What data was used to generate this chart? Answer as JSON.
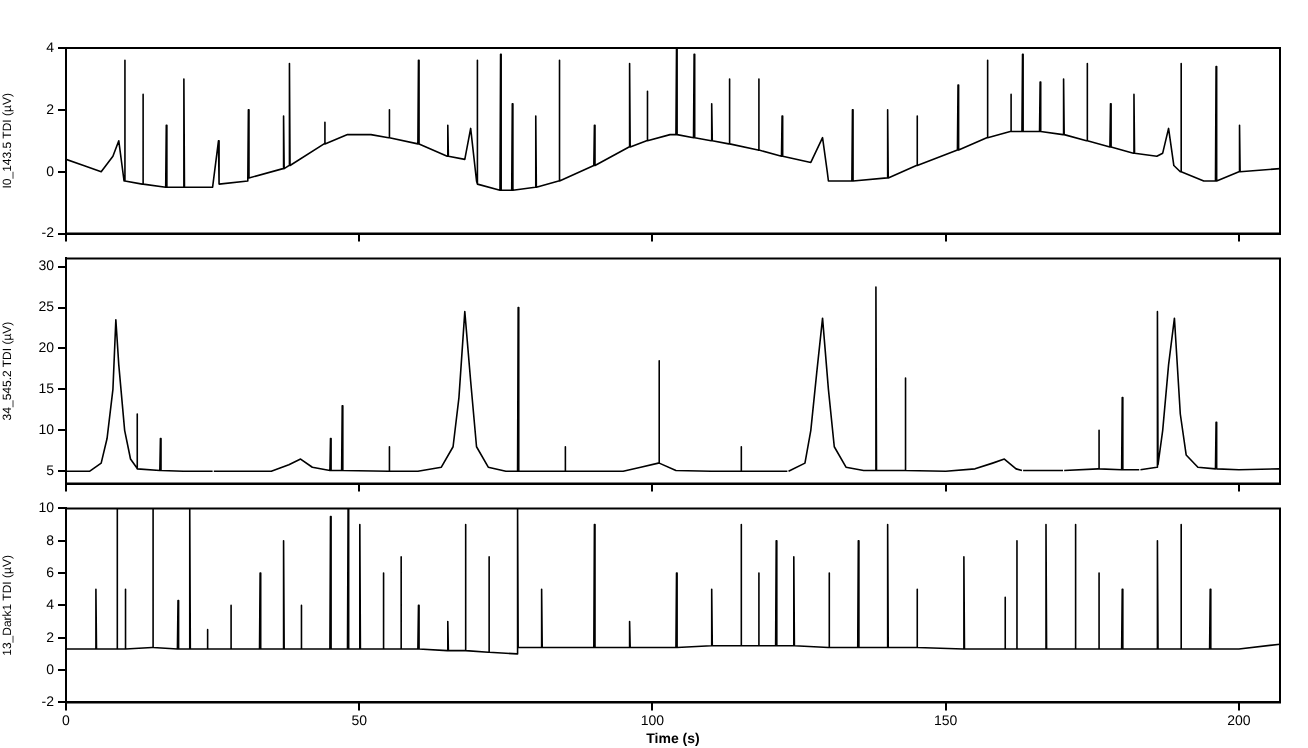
{
  "chart_data": [
    {
      "type": "line",
      "ylabel": "I0_143.5 TDI (µV)",
      "tick_labels": "y",
      "marker": "none",
      "line_style": "solid",
      "xlim": [
        0,
        207
      ],
      "xticks": [
        0,
        50,
        100,
        150,
        200
      ],
      "ylim": [
        -2,
        4
      ],
      "yticks": [
        -2,
        0,
        2,
        4
      ],
      "x": [
        0,
        3,
        6,
        8,
        9,
        9.9,
        10,
        10.1,
        13,
        13.1,
        13.2,
        17,
        17.1,
        17.2,
        20,
        20.1,
        20.2,
        25,
        26,
        26.1,
        31,
        31.1,
        31.2,
        37,
        37.1,
        37.2,
        38,
        38.1,
        38.2,
        44,
        44.1,
        44.2,
        48,
        52,
        55,
        55.1,
        55.2,
        60,
        60.1,
        60.2,
        65,
        65.1,
        65.2,
        68,
        69,
        70,
        70.1,
        70.2,
        74,
        74.1,
        74.2,
        76,
        76.1,
        76.2,
        80,
        80.1,
        80.2,
        84,
        84.1,
        84.2,
        90,
        90.1,
        90.2,
        96,
        96.1,
        96.2,
        99,
        99.1,
        99.2,
        103,
        104,
        104.1,
        104.2,
        107,
        107.1,
        107.2,
        110,
        110.1,
        110.2,
        113,
        113.1,
        113.2,
        118,
        118.1,
        118.2,
        122,
        122.1,
        122.2,
        127,
        129,
        129.8,
        130,
        134,
        134.1,
        134.2,
        140,
        140.1,
        140.2,
        145,
        145.1,
        145.2,
        152,
        152.1,
        152.2,
        157,
        157.1,
        157.2,
        161,
        161.1,
        161.2,
        163,
        163.1,
        163.2,
        166,
        166.1,
        166.2,
        170,
        170.1,
        170.2,
        174,
        174.1,
        174.2,
        178,
        178.1,
        178.2,
        182,
        182.1,
        182.2,
        186,
        187,
        188,
        188.9,
        190,
        190.1,
        190.2,
        194,
        196,
        196.1,
        196.2,
        200,
        200.1,
        200.2,
        207
      ],
      "series": [
        {
          "color": "#000000",
          "values": [
            0.4,
            0.2,
            0,
            0.5,
            1,
            -0.3,
            3.6,
            -0.3,
            -0.4,
            2.5,
            -0.4,
            -0.5,
            1.5,
            -0.5,
            -0.5,
            3,
            -0.5,
            -0.5,
            1,
            -0.4,
            -0.3,
            2,
            -0.2,
            0.1,
            1.8,
            0.1,
            0.2,
            3.5,
            0.2,
            0.9,
            1.6,
            0.9,
            1.2,
            1.2,
            1.1,
            2,
            1.1,
            0.9,
            3.6,
            0.9,
            0.5,
            1.5,
            0.5,
            0.4,
            1.4,
            -0.3,
            3.6,
            -0.4,
            -0.6,
            3.8,
            -0.6,
            -0.6,
            2.2,
            -0.6,
            -0.5,
            1.8,
            -0.5,
            -0.3,
            3.6,
            -0.3,
            0.2,
            1.5,
            0.2,
            0.8,
            3.5,
            0.8,
            1,
            2.6,
            1,
            1.2,
            1.2,
            4,
            1.2,
            1.1,
            3.8,
            1.1,
            1,
            2.2,
            1,
            0.9,
            3,
            0.9,
            0.7,
            3,
            0.7,
            0.5,
            1.8,
            0.5,
            0.3,
            1.1,
            0,
            -0.3,
            -0.3,
            2,
            -0.3,
            -0.2,
            2,
            -0.2,
            0.2,
            1.8,
            0.2,
            0.7,
            2.8,
            0.7,
            1.1,
            3.6,
            1.1,
            1.3,
            2.5,
            1.3,
            1.3,
            3.8,
            1.3,
            1.3,
            2.9,
            1.3,
            1.2,
            3,
            1.2,
            1,
            3.5,
            1,
            0.8,
            2.2,
            0.8,
            0.6,
            2.5,
            0.6,
            0.5,
            0.6,
            1.4,
            0.2,
            0,
            3.5,
            0,
            -0.3,
            -0.3,
            3.4,
            -0.3,
            0,
            1.5,
            0,
            0.1
          ]
        }
      ]
    },
    {
      "type": "line",
      "ylabel": "34_545.2 TDI (µV)",
      "tick_labels": "y",
      "marker": "none",
      "line_style": "solid",
      "xlim": [
        0,
        207
      ],
      "xticks": [
        0,
        50,
        100,
        150,
        200
      ],
      "ylim": [
        3.5,
        31
      ],
      "yticks": [
        5,
        10,
        15,
        20,
        25,
        30
      ],
      "x": [
        0,
        4,
        6,
        7,
        8,
        8.5,
        9,
        10,
        11,
        12,
        12.1,
        12.2,
        16,
        16.1,
        16.2,
        20,
        25,
        25.1,
        25.2,
        30,
        35,
        38,
        40,
        42,
        45,
        45.1,
        45.2,
        47,
        47.1,
        47.2,
        55,
        55.1,
        55.2,
        60,
        64,
        66,
        67,
        68,
        69,
        70,
        72,
        75,
        77,
        77.1,
        77.2,
        85,
        85.1,
        85.2,
        95,
        98,
        101,
        101.1,
        101.2,
        104,
        110,
        115,
        115.1,
        115.2,
        122,
        123,
        123.1,
        123.2,
        126,
        127,
        128,
        129,
        130,
        131,
        133,
        136,
        138,
        138.1,
        138.2,
        143,
        143.1,
        143.2,
        150,
        155,
        158,
        160,
        162,
        163,
        163.1,
        163.2,
        170,
        170.1,
        170.2,
        176,
        176.1,
        176.2,
        180,
        180.1,
        180.2,
        183,
        183.1,
        183.2,
        186,
        186.1,
        186.2,
        187,
        188,
        189,
        190,
        191,
        193,
        196,
        196.1,
        196.2,
        200,
        207
      ],
      "series": [
        {
          "color": "#000000",
          "values": [
            5,
            5,
            6,
            9,
            15,
            23.5,
            18,
            10,
            6.5,
            5.5,
            12,
            5.3,
            5.1,
            9,
            5.1,
            5,
            5,
            null,
            5,
            5,
            5,
            5.8,
            6.5,
            5.5,
            5.1,
            9,
            5.1,
            5.1,
            13,
            5.1,
            5,
            8,
            5,
            5,
            5.5,
            8,
            14,
            24.5,
            16,
            8,
            5.5,
            5,
            5,
            25,
            5,
            5,
            8,
            5,
            5,
            5.5,
            6,
            18.5,
            6,
            5.1,
            5,
            5,
            8,
            5,
            5,
            5,
            null,
            5,
            6,
            10,
            17,
            23.7,
            15,
            8,
            5.5,
            5.1,
            5.1,
            27.5,
            5.1,
            5.1,
            16.4,
            5.1,
            5,
            5.3,
            6,
            6.5,
            5.3,
            5.1,
            null,
            5.1,
            5.1,
            null,
            5.1,
            5.3,
            10,
            5.3,
            5.2,
            14,
            5.2,
            5.2,
            null,
            5.2,
            5.5,
            24.5,
            5.8,
            10,
            18,
            23.7,
            12,
            7,
            5.5,
            5.3,
            11,
            5.3,
            5.2,
            5.3
          ]
        }
      ]
    },
    {
      "type": "line",
      "ylabel": "13_Dark1 TDI (µV)",
      "xlabel": "Time (s)",
      "marker": "none",
      "line_style": "solid",
      "xlim": [
        0,
        207
      ],
      "xticks": [
        0,
        50,
        100,
        150,
        200
      ],
      "ylim": [
        -2,
        10
      ],
      "yticks": [
        -2,
        0,
        2,
        4,
        6,
        8,
        10
      ],
      "x": [
        0,
        3,
        5,
        5.1,
        5.2,
        8.6,
        8.7,
        8.8,
        10,
        10.1,
        10.2,
        14.7,
        14.8,
        14.9,
        19,
        19.1,
        19.2,
        21,
        21.1,
        21.2,
        24,
        24.1,
        24.2,
        28,
        28.1,
        28.2,
        33,
        33.1,
        33.2,
        37,
        37.1,
        37.2,
        40,
        40.1,
        40.2,
        45,
        45.1,
        45.2,
        48,
        48.1,
        48.2,
        50,
        50.1,
        50.2,
        54,
        54.1,
        54.2,
        57,
        57.1,
        57.2,
        60,
        60.1,
        60.2,
        65,
        65.1,
        65.2,
        68,
        68.1,
        68.2,
        72,
        72.1,
        72.2,
        76.9,
        77,
        77.1,
        81,
        81.1,
        81.2,
        90,
        90.1,
        90.2,
        96,
        96.1,
        96.2,
        104,
        104.1,
        104.2,
        110,
        110.1,
        110.2,
        115,
        115.1,
        115.2,
        118,
        118.1,
        118.2,
        121,
        121.1,
        121.2,
        124,
        124.1,
        124.2,
        130,
        130.1,
        130.2,
        135,
        135.1,
        135.2,
        140,
        140.1,
        140.2,
        145,
        145.1,
        145.2,
        153,
        153.1,
        153.2,
        160,
        160.1,
        160.2,
        162,
        162.1,
        162.2,
        167,
        167.1,
        167.2,
        172,
        172.1,
        172.2,
        176,
        176.1,
        176.2,
        180,
        180.1,
        180.2,
        186,
        186.1,
        186.2,
        190,
        190.1,
        190.2,
        195,
        195.1,
        195.2,
        200,
        207
      ],
      "series": [
        {
          "color": "#000000",
          "values": [
            1.3,
            1.3,
            1.3,
            5,
            1.3,
            1.3,
            10,
            1.3,
            1.3,
            5,
            1.3,
            1.4,
            10,
            1.4,
            1.3,
            4.3,
            1.3,
            1.3,
            10,
            1.3,
            1.3,
            2.5,
            1.3,
            1.3,
            4,
            1.3,
            1.3,
            6,
            1.3,
            1.3,
            8,
            1.3,
            1.3,
            4,
            1.3,
            1.3,
            9.5,
            1.3,
            1.3,
            10,
            1.3,
            1.3,
            9,
            1.3,
            1.3,
            6,
            1.3,
            1.3,
            7,
            1.3,
            1.3,
            4,
            1.3,
            1.2,
            3,
            1.2,
            1.2,
            9,
            1.2,
            1.1,
            7,
            1.1,
            1,
            10,
            1.4,
            1.4,
            5,
            1.4,
            1.4,
            9,
            1.4,
            1.4,
            3,
            1.4,
            1.4,
            6,
            1.4,
            1.5,
            5,
            1.5,
            1.5,
            9,
            1.5,
            1.5,
            6,
            1.5,
            1.5,
            8,
            1.5,
            1.5,
            7,
            1.5,
            1.4,
            6,
            1.4,
            1.4,
            8,
            1.4,
            1.4,
            9,
            1.4,
            1.4,
            5,
            1.4,
            1.3,
            7,
            1.3,
            1.3,
            4.5,
            1.3,
            1.3,
            8,
            1.3,
            1.3,
            9,
            1.3,
            1.3,
            9,
            1.3,
            1.3,
            6,
            1.3,
            1.3,
            5,
            1.3,
            1.3,
            8,
            1.3,
            1.3,
            9,
            1.3,
            1.3,
            5,
            1.3,
            1.3,
            1.6
          ]
        }
      ]
    }
  ]
}
